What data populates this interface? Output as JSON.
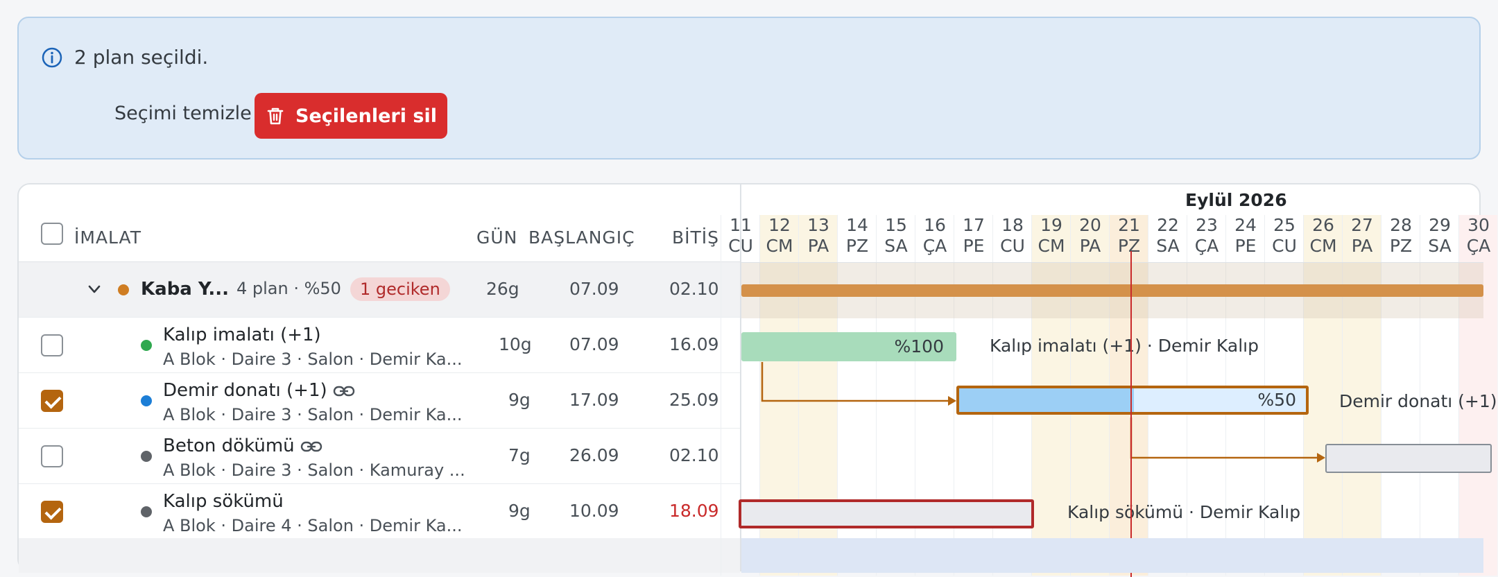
{
  "banner": {
    "info_text": "2 plan seçildi.",
    "clear_label": "Seçimi temizle",
    "delete_label": "Seçilenleri sil"
  },
  "table": {
    "headers": {
      "name": "İMALAT",
      "days": "GÜN",
      "start": "BAŞLANGIÇ",
      "end": "BİTİŞ"
    },
    "group": {
      "name": "Kaba Y...",
      "meta": "4 plan · %50",
      "badge": "1 geciken",
      "days": "26g",
      "start": "07.09",
      "end": "02.10",
      "color": "#cf7d22"
    },
    "rows": [
      {
        "title": "Kalıp imalatı (+1)",
        "sub": "A Blok · Daire 3 · Salon · Demir Ka...",
        "days": "10g",
        "start": "07.09",
        "end": "16.09",
        "checked": false,
        "linked": false,
        "dot": "#2fa84f",
        "late": false
      },
      {
        "title": "Demir donatı (+1)",
        "sub": "A Blok · Daire 3 · Salon · Demir Ka...",
        "days": "9g",
        "start": "17.09",
        "end": "25.09",
        "checked": true,
        "linked": true,
        "dot": "#1c7ed6",
        "late": false
      },
      {
        "title": "Beton dökümü",
        "sub": "A Blok · Daire 3 · Salon · Kamuray ...",
        "days": "7g",
        "start": "26.09",
        "end": "02.10",
        "checked": false,
        "linked": true,
        "dot": "#5f6368",
        "late": false
      },
      {
        "title": "Kalıp sökümü",
        "sub": "A Blok · Daire 4 · Salon · Demir Ka...",
        "days": "9g",
        "start": "10.09",
        "end": "18.09",
        "checked": true,
        "linked": false,
        "dot": "#5f6368",
        "late": true
      }
    ]
  },
  "gantt": {
    "month": "Eylül 2026",
    "days": [
      {
        "num": "11",
        "dow": "CU",
        "type": "normal"
      },
      {
        "num": "12",
        "dow": "CM",
        "type": "weekend"
      },
      {
        "num": "13",
        "dow": "PA",
        "type": "weekend"
      },
      {
        "num": "14",
        "dow": "PZ",
        "type": "normal"
      },
      {
        "num": "15",
        "dow": "SA",
        "type": "normal"
      },
      {
        "num": "16",
        "dow": "ÇA",
        "type": "normal"
      },
      {
        "num": "17",
        "dow": "PE",
        "type": "normal"
      },
      {
        "num": "18",
        "dow": "CU",
        "type": "normal"
      },
      {
        "num": "19",
        "dow": "CM",
        "type": "weekend"
      },
      {
        "num": "20",
        "dow": "PA",
        "type": "weekend"
      },
      {
        "num": "21",
        "dow": "PZ",
        "type": "today"
      },
      {
        "num": "22",
        "dow": "SA",
        "type": "normal"
      },
      {
        "num": "23",
        "dow": "ÇA",
        "type": "normal"
      },
      {
        "num": "24",
        "dow": "PE",
        "type": "normal"
      },
      {
        "num": "25",
        "dow": "CU",
        "type": "normal"
      },
      {
        "num": "26",
        "dow": "CM",
        "type": "weekend"
      },
      {
        "num": "27",
        "dow": "PA",
        "type": "weekend"
      },
      {
        "num": "28",
        "dow": "PZ",
        "type": "normal"
      },
      {
        "num": "29",
        "dow": "SA",
        "type": "normal"
      },
      {
        "num": "30",
        "dow": "ÇA",
        "type": "holiday"
      }
    ],
    "bars": [
      {
        "pct": "%100",
        "label": "Kalıp imalatı (+1) · Demir Kalıp"
      },
      {
        "pct": "%50",
        "label": "Demir donatı (+1)"
      },
      {
        "pct": "",
        "label": ""
      },
      {
        "pct": "",
        "label": "Kalıp sökümü · Demir Kalıp"
      }
    ]
  }
}
